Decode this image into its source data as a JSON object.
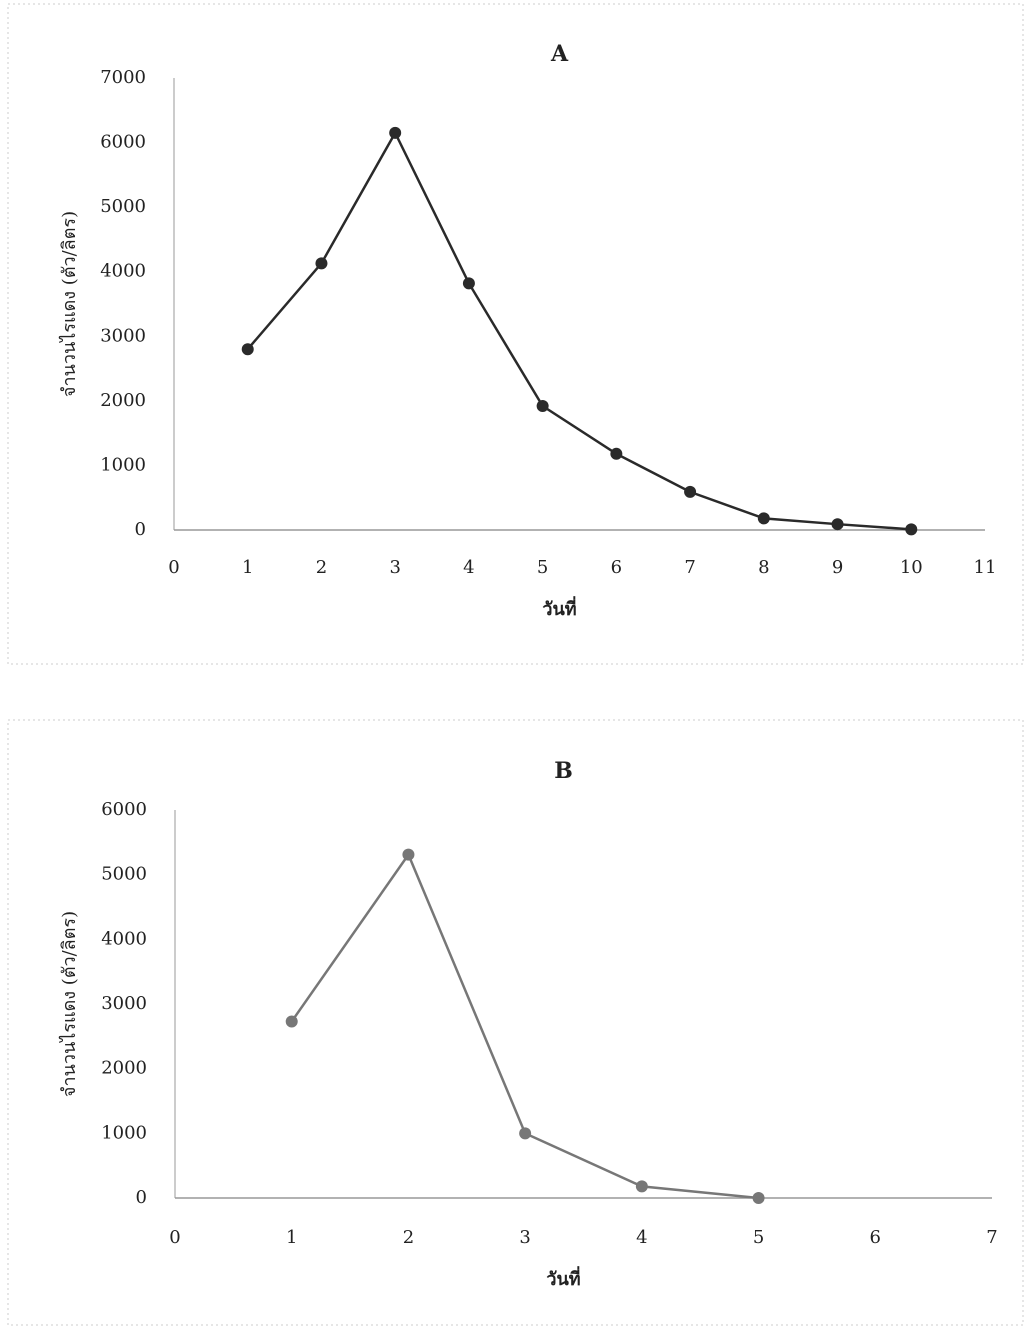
{
  "chart_data": [
    {
      "type": "line",
      "title": "A",
      "x_label": "วันที่",
      "y_label": "จำนวนไรแดง (ตัว/ลิตร)",
      "x": [
        1,
        2,
        3,
        4,
        5,
        6,
        7,
        8,
        9,
        10
      ],
      "series": [
        {
          "color": "#2a2a2a",
          "values": [
            2800,
            4130,
            6150,
            3820,
            1920,
            1180,
            590,
            180,
            90,
            10
          ]
        }
      ],
      "xlim": [
        0,
        11
      ],
      "xticks": [
        0,
        1,
        2,
        3,
        4,
        5,
        6,
        7,
        8,
        9,
        10,
        11
      ],
      "ylim": [
        0,
        7000
      ],
      "yticks": [
        0,
        1000,
        2000,
        3000,
        4000,
        5000,
        6000,
        7000
      ],
      "grid": false
    },
    {
      "type": "line",
      "title": "B",
      "x_label": "วันที่",
      "y_label": "จำนวนไรแดง (ตัว/ลิตร)",
      "x": [
        1,
        2,
        3,
        4,
        5
      ],
      "series": [
        {
          "color": "#777777",
          "values": [
            2730,
            5310,
            1000,
            180,
            0
          ]
        }
      ],
      "xlim": [
        0,
        7
      ],
      "xticks": [
        0,
        1,
        2,
        3,
        4,
        5,
        6,
        7
      ],
      "ylim": [
        0,
        6000
      ],
      "yticks": [
        0,
        1000,
        2000,
        3000,
        4000,
        5000,
        6000
      ],
      "grid": false
    }
  ]
}
